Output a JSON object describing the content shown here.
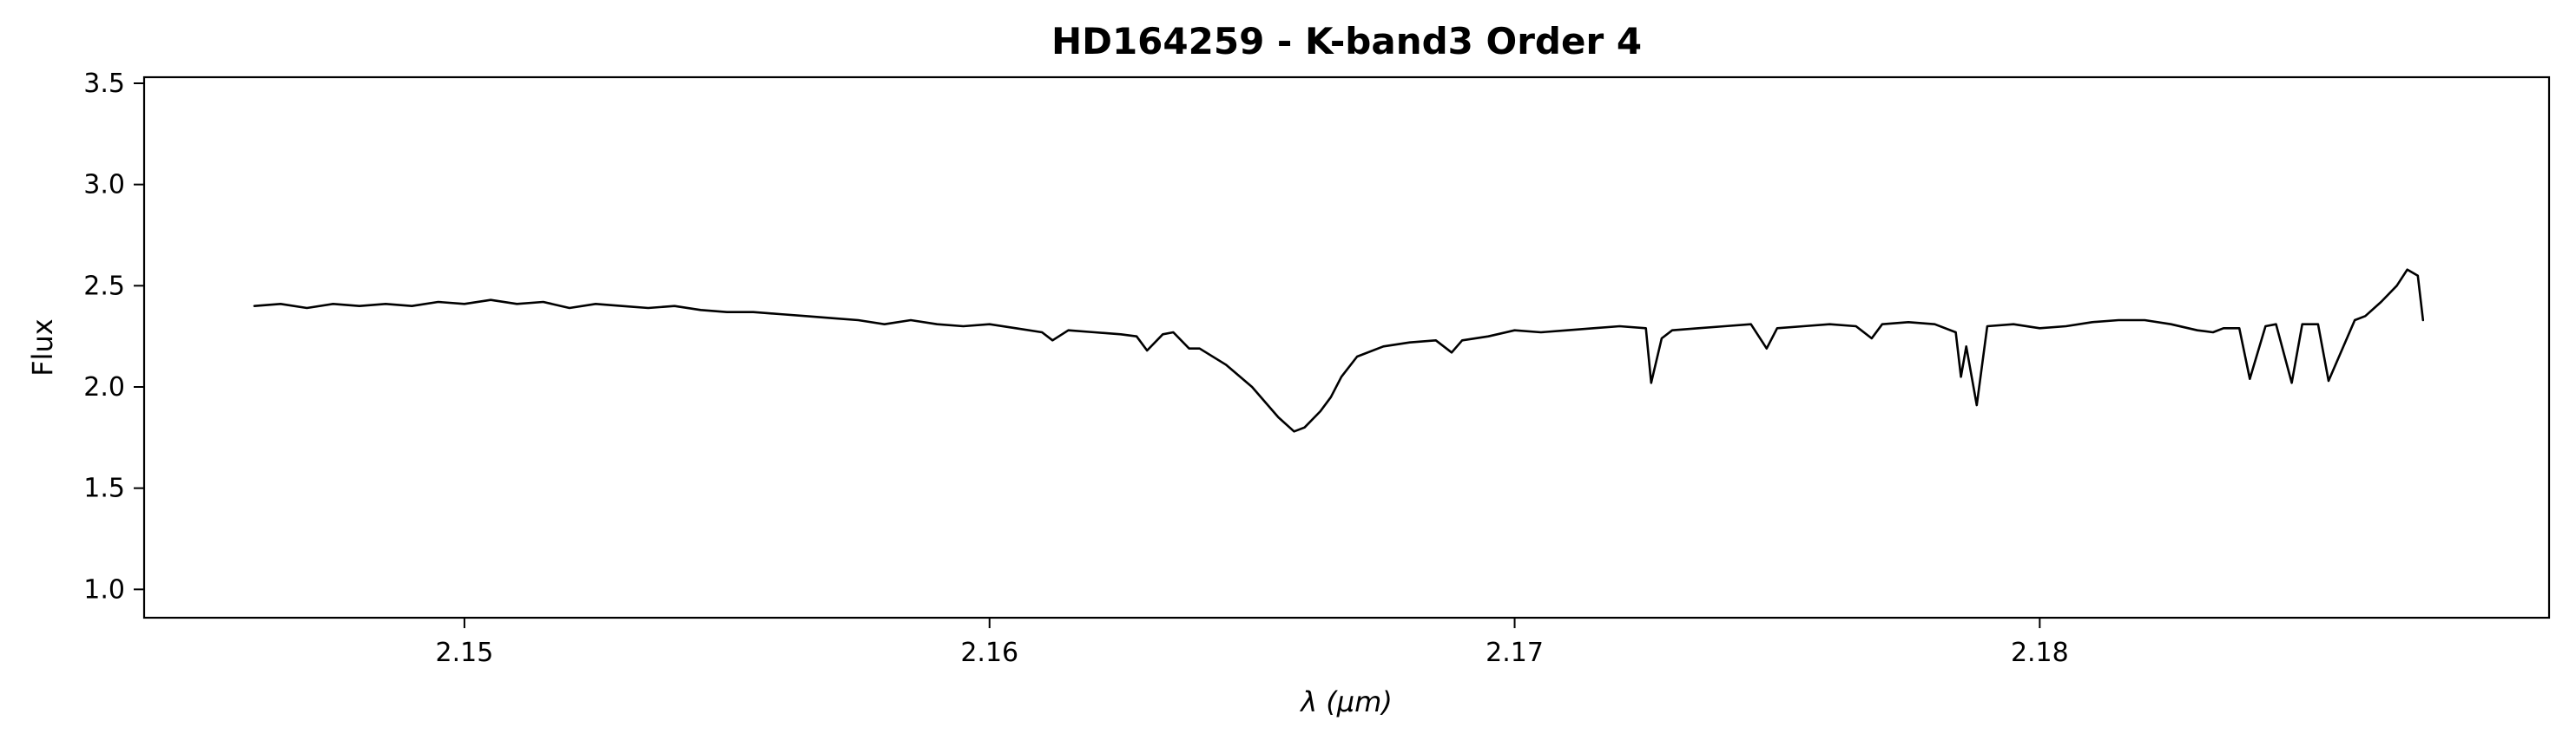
{
  "chart_data": {
    "type": "line",
    "title": "HD164259 - K-band3 Order 4",
    "xlabel": "λ (μm)",
    "ylabel": "Flux",
    "xlim": [
      2.1439,
      2.1897
    ],
    "ylim": [
      0.86,
      3.53
    ],
    "x_ticks": [
      2.15,
      2.16,
      2.17,
      2.18
    ],
    "x_tick_labels": [
      "2.15",
      "2.16",
      "2.17",
      "2.18"
    ],
    "y_ticks": [
      1.0,
      1.5,
      2.0,
      2.5,
      3.0,
      3.5
    ],
    "y_tick_labels": [
      "1.0",
      "1.5",
      "2.0",
      "2.5",
      "3.0",
      "3.5"
    ],
    "grid": false,
    "line_color": "#000000",
    "series": [
      {
        "x": [
          2.146,
          2.1465,
          2.147,
          2.1475,
          2.148,
          2.1485,
          2.149,
          2.1495,
          2.15,
          2.1505,
          2.151,
          2.1515,
          2.152,
          2.1525,
          2.153,
          2.1535,
          2.154,
          2.1545,
          2.155,
          2.1555,
          2.156,
          2.1565,
          2.157,
          2.1575,
          2.158,
          2.1585,
          2.159,
          2.1595,
          2.16,
          2.1605,
          2.161,
          2.1612,
          2.1615,
          2.162,
          2.1625,
          2.1628,
          2.163,
          2.1633,
          2.1635,
          2.1638,
          2.164,
          2.1645,
          2.165,
          2.1655,
          2.1658,
          2.166,
          2.1663,
          2.1665,
          2.1667,
          2.167,
          2.1675,
          2.168,
          2.1685,
          2.1688,
          2.169,
          2.1695,
          2.17,
          2.1705,
          2.171,
          2.1715,
          2.172,
          2.1725,
          2.1726,
          2.1728,
          2.173,
          2.1735,
          2.174,
          2.1745,
          2.1748,
          2.175,
          2.1755,
          2.176,
          2.1765,
          2.1768,
          2.177,
          2.1775,
          2.178,
          2.1784,
          2.1785,
          2.1786,
          2.1788,
          2.179,
          2.1795,
          2.18,
          2.1805,
          2.181,
          2.1815,
          2.182,
          2.1825,
          2.183,
          2.1833,
          2.1835,
          2.1838,
          2.184,
          2.1843,
          2.1845,
          2.1848,
          2.185,
          2.1853,
          2.1855,
          2.186,
          2.1862,
          2.1865,
          2.1868,
          2.187,
          2.1872,
          2.1873
        ],
        "y": [
          2.4,
          2.41,
          2.39,
          2.41,
          2.4,
          2.41,
          2.4,
          2.42,
          2.41,
          2.43,
          2.41,
          2.42,
          2.39,
          2.41,
          2.4,
          2.39,
          2.4,
          2.38,
          2.37,
          2.37,
          2.36,
          2.35,
          2.34,
          2.33,
          2.31,
          2.33,
          2.31,
          2.3,
          2.31,
          2.29,
          2.27,
          2.23,
          2.28,
          2.27,
          2.26,
          2.25,
          2.18,
          2.26,
          2.27,
          2.19,
          2.19,
          2.11,
          2.0,
          1.85,
          1.78,
          1.8,
          1.88,
          1.95,
          2.05,
          2.15,
          2.2,
          2.22,
          2.23,
          2.17,
          2.23,
          2.25,
          2.28,
          2.27,
          2.28,
          2.29,
          2.3,
          2.29,
          2.02,
          2.24,
          2.28,
          2.29,
          2.3,
          2.31,
          2.19,
          2.29,
          2.3,
          2.31,
          2.3,
          2.24,
          2.31,
          2.32,
          2.31,
          2.27,
          2.05,
          2.2,
          1.91,
          2.3,
          2.31,
          2.29,
          2.3,
          2.32,
          2.33,
          2.33,
          2.31,
          2.28,
          2.27,
          2.29,
          2.29,
          2.04,
          2.3,
          2.31,
          2.02,
          2.31,
          2.31,
          2.03,
          2.33,
          2.35,
          2.42,
          2.5,
          2.58,
          2.55,
          2.33
        ]
      }
    ]
  }
}
